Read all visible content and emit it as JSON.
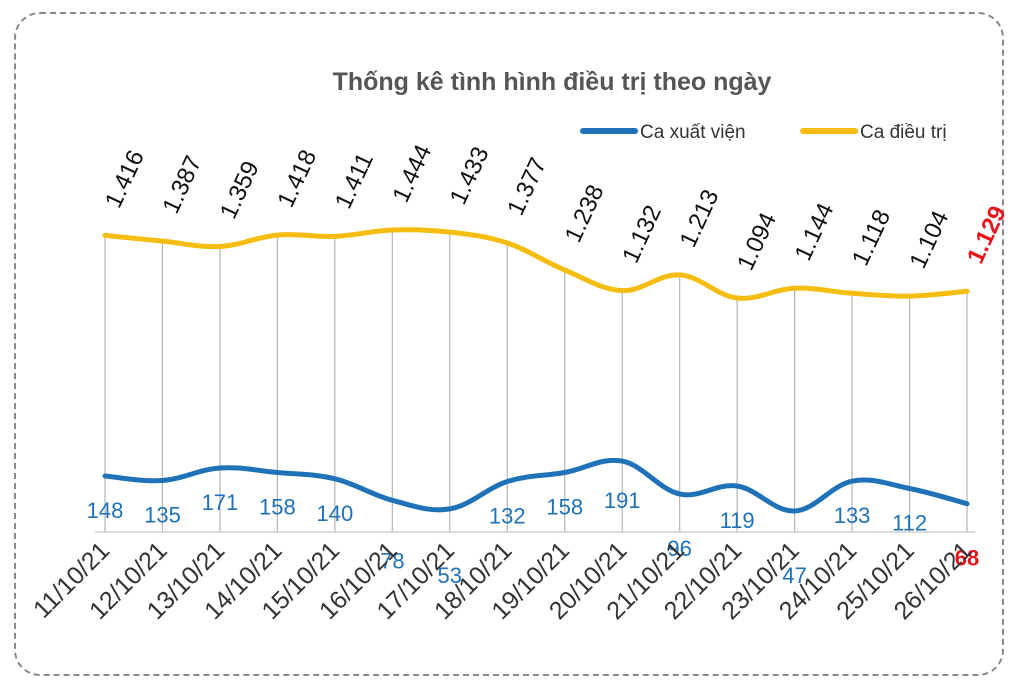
{
  "chart_data": {
    "type": "line",
    "title": "Thống kê tình hình điều trị theo ngày",
    "categories": [
      "11/10/21",
      "12/10/21",
      "13/10/21",
      "14/10/21",
      "15/10/21",
      "16/10/21",
      "17/10/21",
      "18/10/21",
      "19/10/21",
      "20/10/21",
      "21/10/21",
      "22/10/21",
      "23/10/21",
      "24/10/21",
      "25/10/21",
      "26/10/21"
    ],
    "series": [
      {
        "name": "Ca xuất viện",
        "color": "#1f72b8",
        "values": [
          148,
          135,
          171,
          158,
          140,
          78,
          53,
          132,
          158,
          191,
          96,
          119,
          47,
          133,
          112,
          68
        ],
        "labels": [
          "148",
          "135",
          "171",
          "158",
          "140",
          "78",
          "53",
          "132",
          "158",
          "191",
          "96",
          "119",
          "47",
          "133",
          "112",
          "68"
        ]
      },
      {
        "name": "Ca điều trị",
        "color": "#f5bd0f",
        "values": [
          1416,
          1387,
          1359,
          1418,
          1411,
          1444,
          1433,
          1377,
          1238,
          1132,
          1213,
          1094,
          1144,
          1118,
          1104,
          1129
        ],
        "labels": [
          "1.416",
          "1.387",
          "1.359",
          "1.418",
          "1.411",
          "1.444",
          "1.433",
          "1.377",
          "1.238",
          "1.132",
          "1.213",
          "1.094",
          "1.144",
          "1.118",
          "1.104",
          "1.129"
        ]
      }
    ],
    "legend_position": "top-right",
    "grid": "vertical",
    "highlight_color": "#e8141c"
  }
}
